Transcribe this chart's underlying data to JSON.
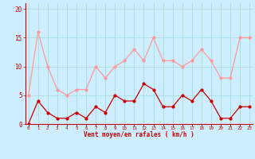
{
  "x": [
    0,
    1,
    2,
    3,
    4,
    5,
    6,
    7,
    8,
    9,
    10,
    11,
    12,
    13,
    14,
    15,
    16,
    17,
    18,
    19,
    20,
    21,
    22,
    23
  ],
  "wind_avg": [
    0,
    4,
    2,
    1,
    1,
    2,
    1,
    3,
    2,
    5,
    4,
    4,
    7,
    6,
    3,
    3,
    5,
    4,
    6,
    4,
    1,
    1,
    3,
    3
  ],
  "wind_gust": [
    5,
    16,
    10,
    6,
    5,
    6,
    6,
    10,
    8,
    10,
    11,
    13,
    11,
    15,
    11,
    11,
    10,
    11,
    13,
    11,
    8,
    8,
    15,
    15
  ],
  "avg_color": "#cc0000",
  "gust_color": "#ff9999",
  "bg_color": "#cceeff",
  "grid_color": "#aadddd",
  "xlabel": "Vent moyen/en rafales ( km/h )",
  "ylabel_ticks": [
    0,
    5,
    10,
    15,
    20
  ],
  "ylim": [
    0,
    21
  ],
  "xlim": [
    -0.3,
    23.3
  ]
}
